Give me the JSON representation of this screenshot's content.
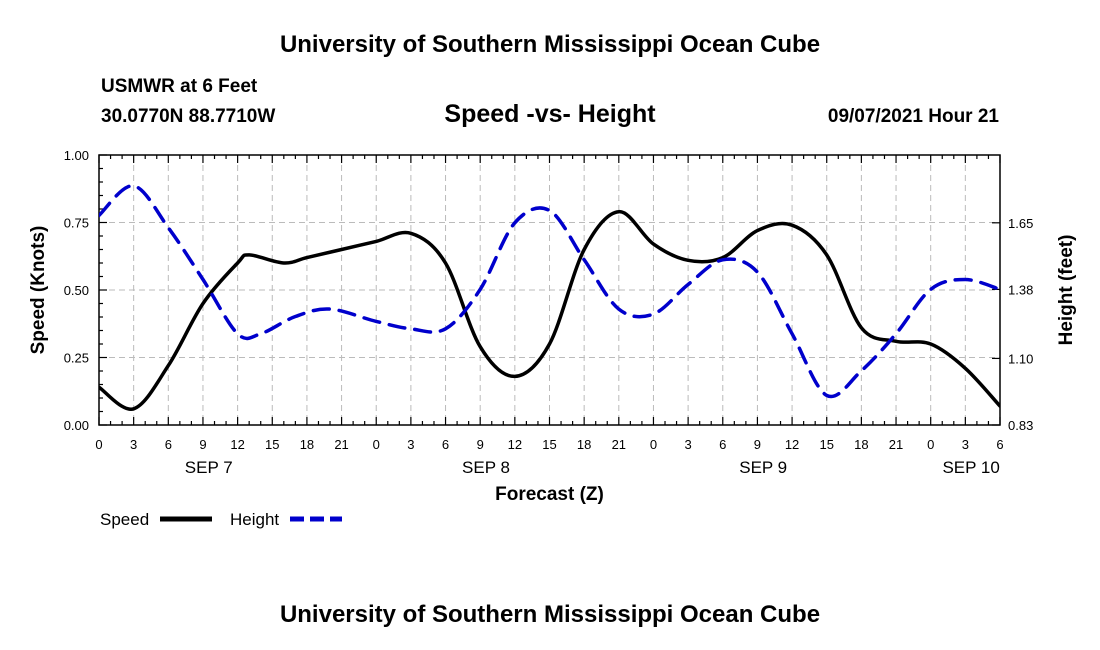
{
  "header": {
    "title": "University of Southern Mississippi Ocean Cube",
    "station": "USMWR at 6 Feet",
    "coords": "30.0770N  88.7710W",
    "subtitle": "Speed -vs- Height",
    "datetime": "09/07/2021 Hour 21"
  },
  "footer": {
    "title": "University of Southern Mississippi Ocean Cube"
  },
  "chart_data": {
    "type": "line",
    "title": "Speed -vs- Height",
    "xlabel": "Forecast (Z)",
    "ylabel": "Speed (Knots)",
    "y2label": "Height (feet)",
    "xlim": [
      0,
      78
    ],
    "ylim": [
      0,
      1.0
    ],
    "y2lim": [
      0.83,
      1.925
    ],
    "grid": true,
    "x_tick_labels": [
      "0",
      "3",
      "6",
      "9",
      "12",
      "15",
      "18",
      "21",
      "0",
      "3",
      "6",
      "9",
      "12",
      "15",
      "18",
      "21",
      "0",
      "3",
      "6",
      "9",
      "12",
      "15",
      "18",
      "21",
      "0",
      "3",
      "6"
    ],
    "y_ticks": [
      "0.00",
      "0.25",
      "0.50",
      "0.75",
      "1.00"
    ],
    "y2_ticks": [
      "0.83",
      "1.10",
      "1.38",
      "1.65"
    ],
    "date_labels": [
      {
        "text": "SEP 7",
        "hour": 9.5
      },
      {
        "text": "SEP 8",
        "hour": 33.5
      },
      {
        "text": "SEP 9",
        "hour": 57.5
      },
      {
        "text": "SEP 10",
        "hour": 75.5
      }
    ],
    "series": [
      {
        "name": "Speed",
        "axis": "left",
        "color": "#000000",
        "dash": "solid",
        "x": [
          0,
          3,
          6,
          9,
          12,
          13,
          16,
          18,
          21,
          24,
          27,
          30,
          33,
          36,
          39,
          42,
          45,
          48,
          51,
          54,
          57,
          60,
          63,
          66,
          69,
          72,
          75,
          78
        ],
        "values": [
          0.14,
          0.06,
          0.22,
          0.45,
          0.6,
          0.63,
          0.6,
          0.62,
          0.65,
          0.68,
          0.71,
          0.6,
          0.29,
          0.18,
          0.3,
          0.65,
          0.79,
          0.67,
          0.61,
          0.62,
          0.72,
          0.74,
          0.63,
          0.36,
          0.31,
          0.3,
          0.21,
          0.07
        ]
      },
      {
        "name": "Height",
        "axis": "right",
        "color": "#0000cc",
        "dash": "dashed",
        "x": [
          0,
          3,
          6,
          9,
          12,
          14,
          17,
          20,
          24,
          27,
          30,
          33,
          36,
          39,
          42,
          45,
          48,
          51,
          54,
          57,
          60,
          63,
          66,
          69,
          72,
          75,
          78
        ],
        "values": [
          1.68,
          1.8,
          1.63,
          1.42,
          1.2,
          1.2,
          1.27,
          1.3,
          1.25,
          1.22,
          1.22,
          1.38,
          1.65,
          1.7,
          1.5,
          1.3,
          1.28,
          1.4,
          1.5,
          1.45,
          1.2,
          0.95,
          1.05,
          1.2,
          1.38,
          1.42,
          1.38
        ]
      }
    ],
    "legend": [
      {
        "label": "Speed",
        "color": "#000000",
        "dash": "solid"
      },
      {
        "label": "Height",
        "color": "#0000cc",
        "dash": "dashed"
      }
    ],
    "legend_position": "bottom-left"
  }
}
